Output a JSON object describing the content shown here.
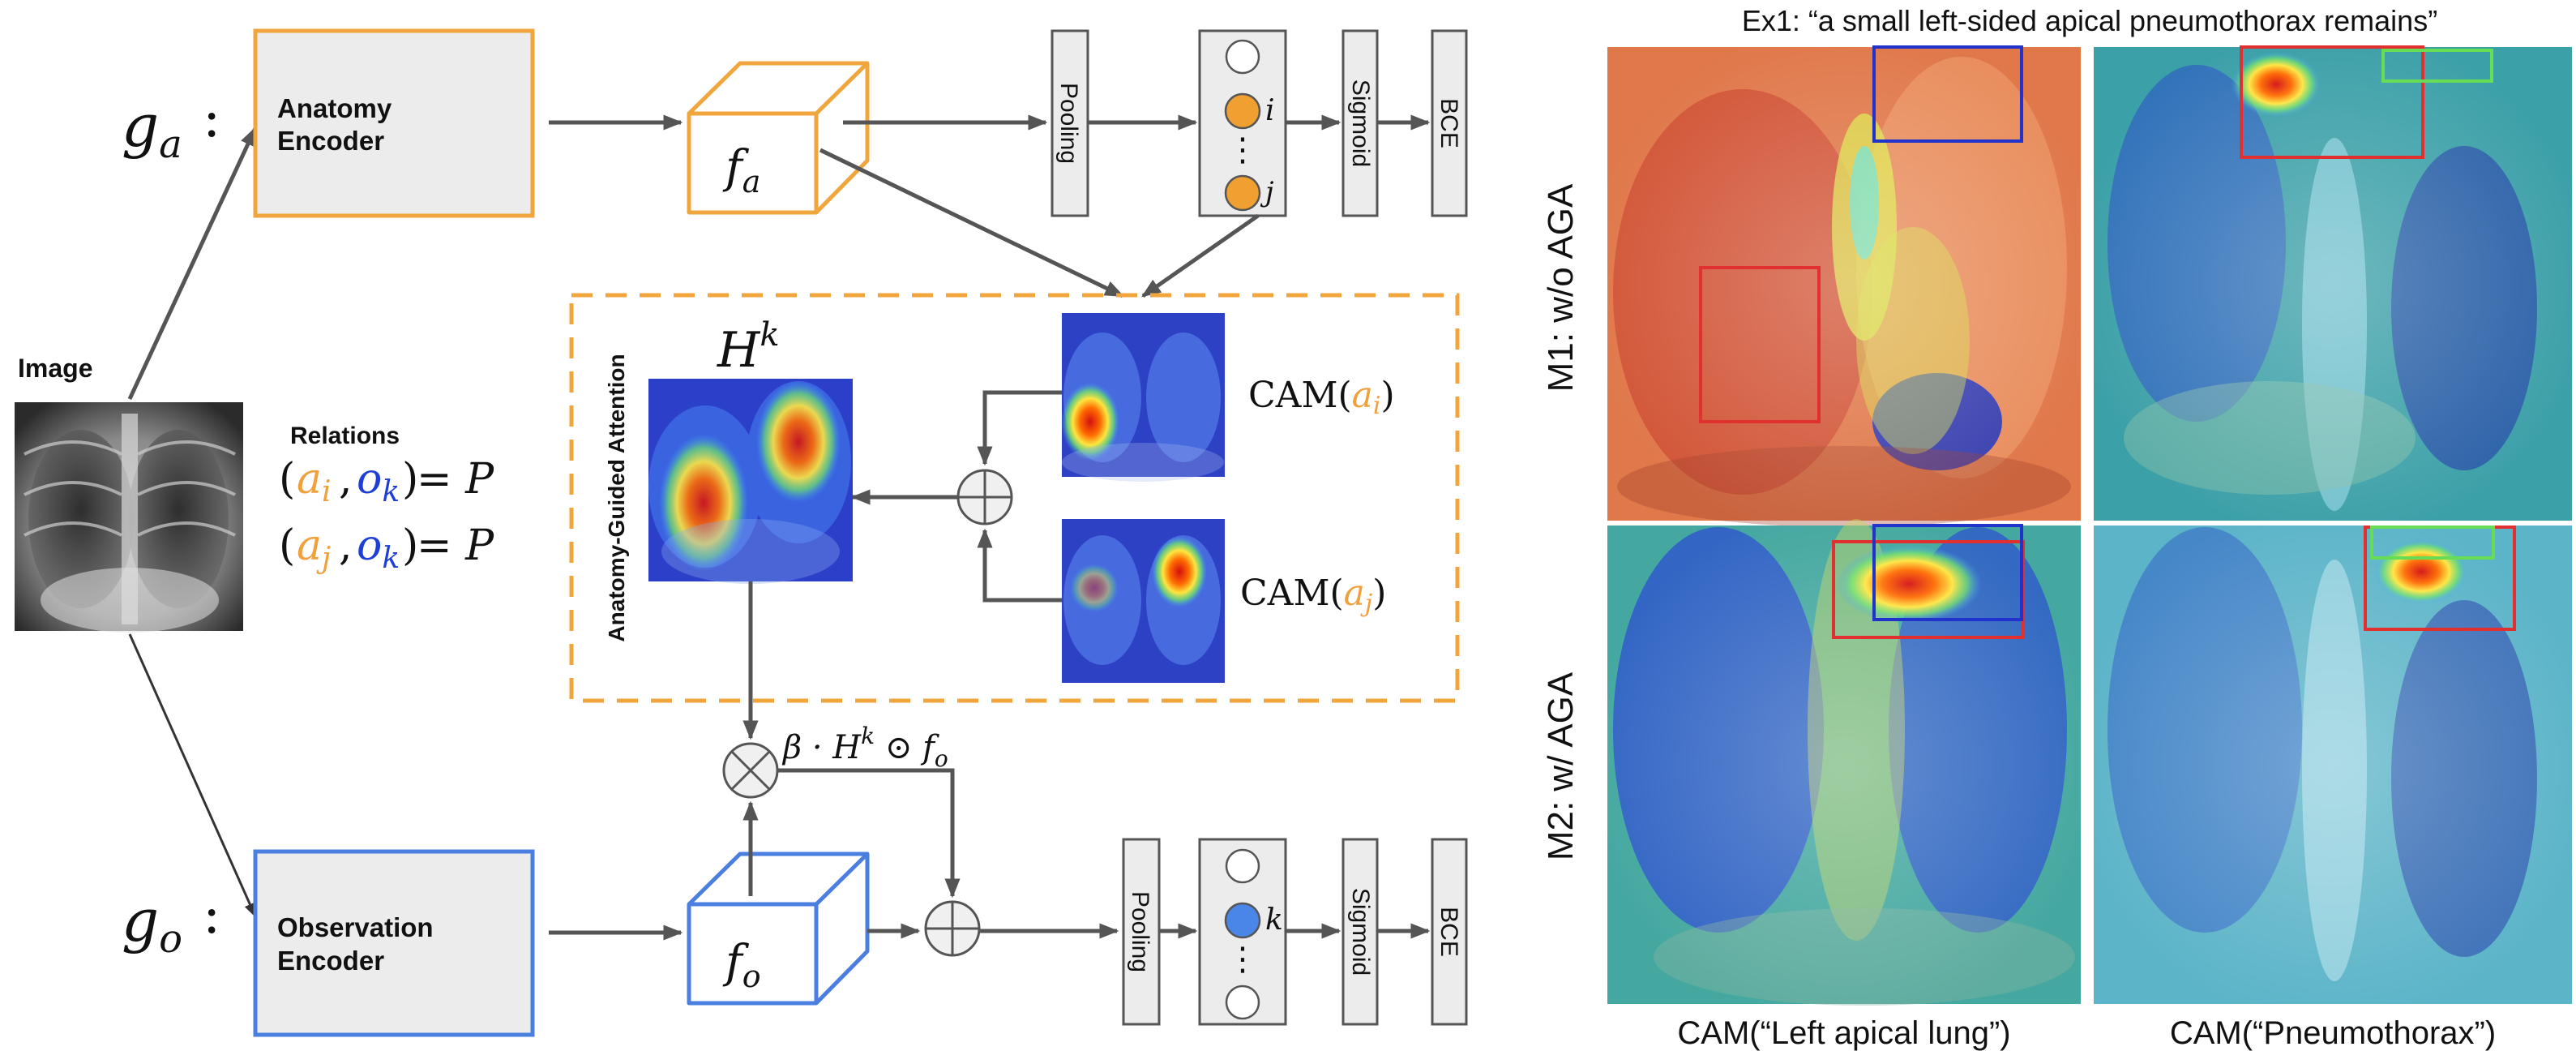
{
  "colors": {
    "anatomy": "#f0a63c",
    "observation": "#4a7fe0",
    "arrow": "#555555",
    "box_fill": "#ececec",
    "node_orange": "#f0a030",
    "node_blue": "#4a86e8",
    "bbox_red": "#e03030",
    "bbox_blue": "#2233cc",
    "bbox_green": "#66dd55"
  },
  "icons": [
    "circle-plus-icon",
    "circle-times-icon"
  ],
  "left": {
    "ga_label": "g",
    "ga_sub": "a",
    "go_label": "g",
    "go_sub": "o",
    "colon": ":",
    "image_label": "Image",
    "relations_title": "Relations",
    "relation_1": {
      "a": "a",
      "a_sub": "i",
      "o": "o",
      "o_sub": "k",
      "eq": "= P"
    },
    "relation_2": {
      "a": "a",
      "a_sub": "j",
      "o": "o",
      "o_sub": "k",
      "eq": "= P"
    },
    "anatomy_encoder": [
      "Anatomy",
      "Encoder"
    ],
    "observation_encoder": [
      "Observation",
      "Encoder"
    ],
    "fa_label": "f",
    "fa_sub": "a",
    "fo_label": "f",
    "fo_sub": "o",
    "pooling": "Pooling",
    "sigmoid": "Sigmoid",
    "bce": "BCE",
    "node_i": "i",
    "node_j": "j",
    "node_k": "k",
    "dots": "⋮",
    "aga_title": "Anatomy-Guided Attention",
    "hk_label": "H",
    "hk_sup": "k",
    "cam_ai": {
      "prefix": "CAM(",
      "var": "a",
      "sub": "i",
      "suffix": ")"
    },
    "cam_aj": {
      "prefix": "CAM(",
      "var": "a",
      "sub": "j",
      "suffix": ")"
    },
    "beta_formula": {
      "beta": "β · H",
      "sup": "k",
      "odot": " ⊙ f",
      "sub": "o"
    }
  },
  "right": {
    "title": "Ex1: “a small left-sided apical pneumothorax remains”",
    "row1_label": "M1: w/o AGA",
    "row2_label": "M2: w/ AGA",
    "col1_label": "CAM(“Left apical lung”)",
    "col2_label": "CAM(“Pneumothorax”)"
  }
}
